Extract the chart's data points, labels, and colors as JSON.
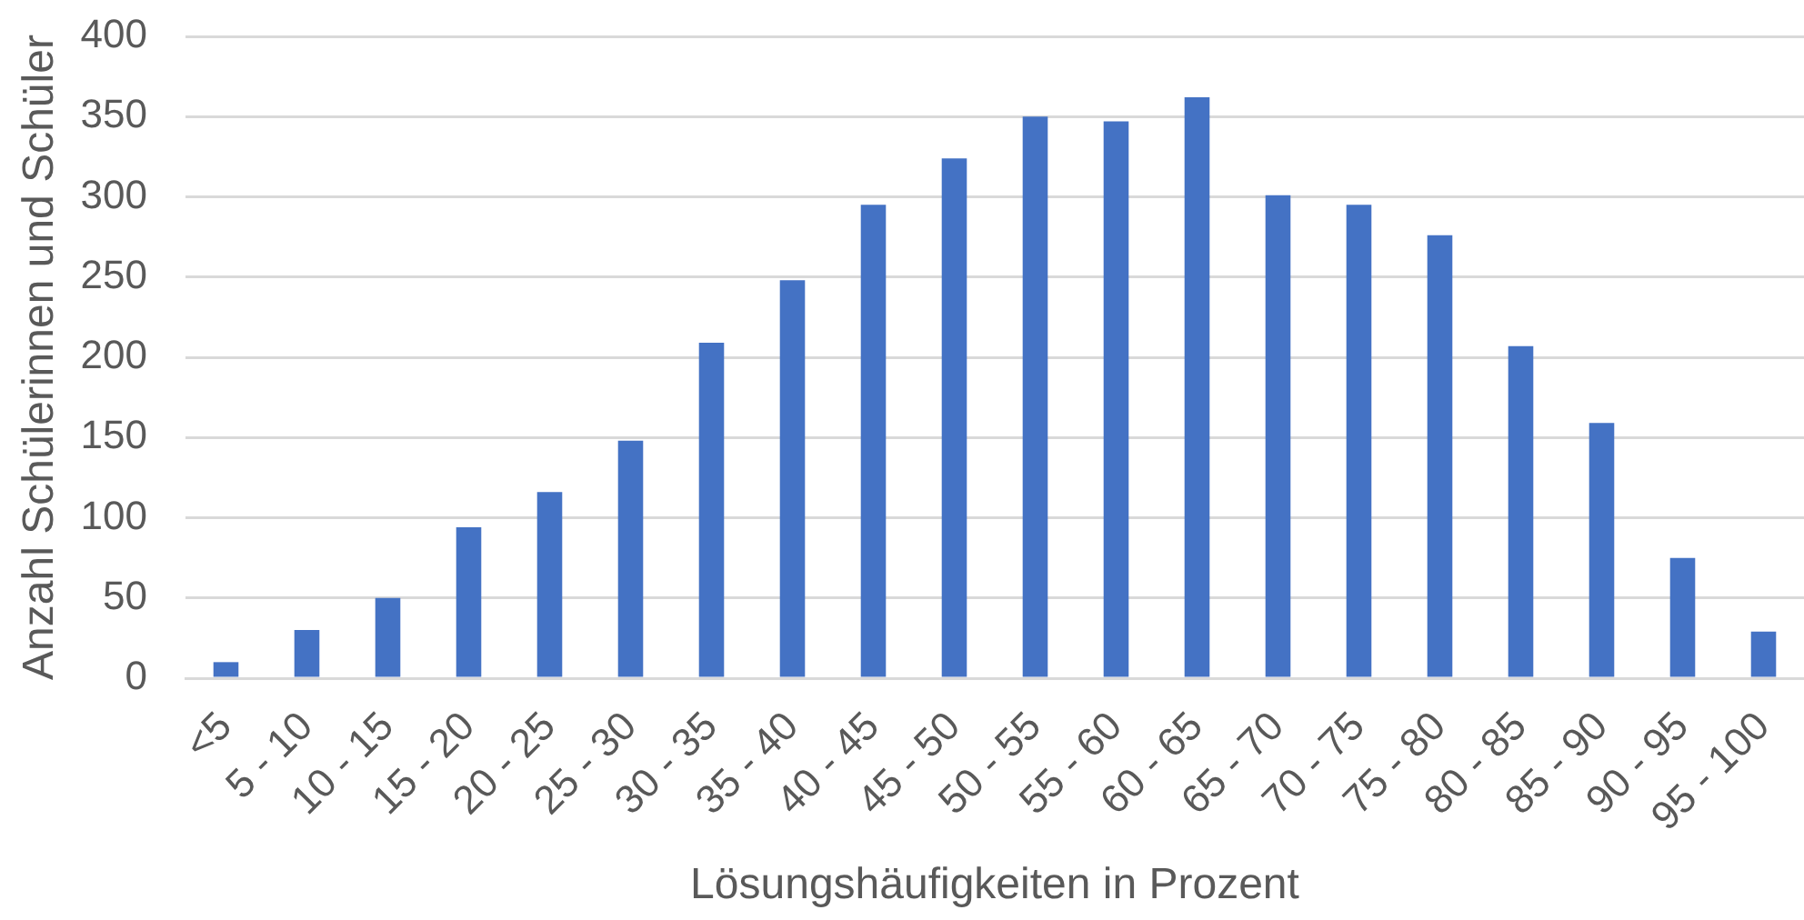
{
  "chart_data": {
    "type": "bar",
    "xlabel": "Lösungshäufigkeiten in Prozent",
    "ylabel": "Anzahl Schülerinnen und Schüler",
    "categories": [
      "<5",
      "5 - 10",
      "10 - 15",
      "15 - 20",
      "20 - 25",
      "25 - 30",
      "30 - 35",
      "35 - 40",
      "40 - 45",
      "45 - 50",
      "50 - 55",
      "55 - 60",
      "60 - 65",
      "65 - 70",
      "70 - 75",
      "75 - 80",
      "80 - 85",
      "85 - 90",
      "90 - 95",
      "95 - 100"
    ],
    "values": [
      10,
      30,
      50,
      94,
      116,
      148,
      209,
      248,
      295,
      324,
      350,
      347,
      362,
      301,
      295,
      276,
      207,
      159,
      75,
      29
    ],
    "color": "#4472c4",
    "ylim": [
      0,
      400
    ],
    "yticks": [
      0,
      50,
      100,
      150,
      200,
      250,
      300,
      350,
      400
    ],
    "grid": "y",
    "legend": false
  }
}
